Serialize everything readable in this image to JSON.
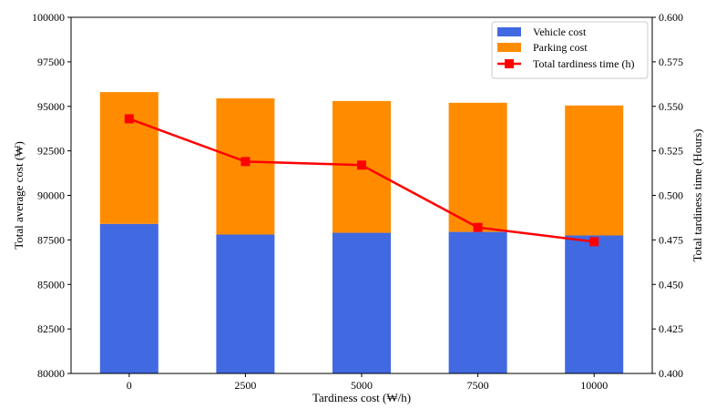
{
  "chart_data": {
    "type": "bar",
    "stacked": true,
    "title": "",
    "xlabel": "Tardiness cost (₩/h)",
    "ylabel": "Total average cost (₩)",
    "y2label": "Total tardiness time (Hours)",
    "categories": [
      "0",
      "2500",
      "5000",
      "7500",
      "10000"
    ],
    "ylim": [
      80000,
      100000
    ],
    "yticks": [
      80000,
      82500,
      85000,
      87500,
      90000,
      92500,
      95000,
      97500,
      100000
    ],
    "y2lim": [
      0.4,
      0.6
    ],
    "y2ticks": [
      "0.400",
      "0.425",
      "0.450",
      "0.475",
      "0.500",
      "0.525",
      "0.550",
      "0.575",
      "0.600"
    ],
    "series": [
      {
        "name": "Vehicle cost",
        "kind": "bar",
        "color": "#4169e1",
        "values": [
          88400,
          87800,
          87900,
          87950,
          87750
        ]
      },
      {
        "name": "Parking cost",
        "kind": "bar",
        "color": "#ff8c00",
        "values": [
          7400,
          7650,
          7400,
          7250,
          7300
        ]
      },
      {
        "name": "Total tardiness time (h)",
        "kind": "line",
        "axis": "right",
        "color": "#ff0000",
        "values": [
          0.543,
          0.519,
          0.517,
          0.482,
          0.474
        ]
      }
    ],
    "legend_position": "top-right"
  }
}
